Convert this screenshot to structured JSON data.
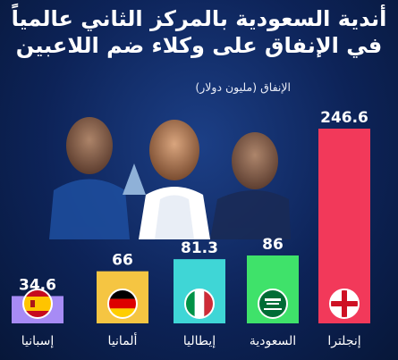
{
  "title_line1": "أندية السعودية بالمركز الثاني عالمياً",
  "title_line2": "في الإنفاق على وكلاء ضم اللاعبين",
  "chart_data": {
    "type": "bar",
    "title": "أندية السعودية بالمركز الثاني عالمياً في الإنفاق على وكلاء ضم اللاعبين",
    "ylabel": "الإنفاق (مليون دولار)",
    "categories": [
      "إسبانيا",
      "ألمانيا",
      "إيطاليا",
      "السعودية",
      "إنجلترا"
    ],
    "values": [
      34.6,
      66,
      81.3,
      86,
      246.6
    ],
    "value_labels": [
      "34.6",
      "66",
      "81.3",
      "86",
      "246.6"
    ],
    "bar_colors": [
      "#a78bf5",
      "#f5c542",
      "#3fd6d6",
      "#3fe26a",
      "#f2395a"
    ],
    "flags": [
      "spain-flag-icon",
      "germany-flag-icon",
      "italy-flag-icon",
      "saudi-flag-icon",
      "england-flag-icon"
    ],
    "ylim": [
      0,
      246.6
    ],
    "grid": false
  }
}
